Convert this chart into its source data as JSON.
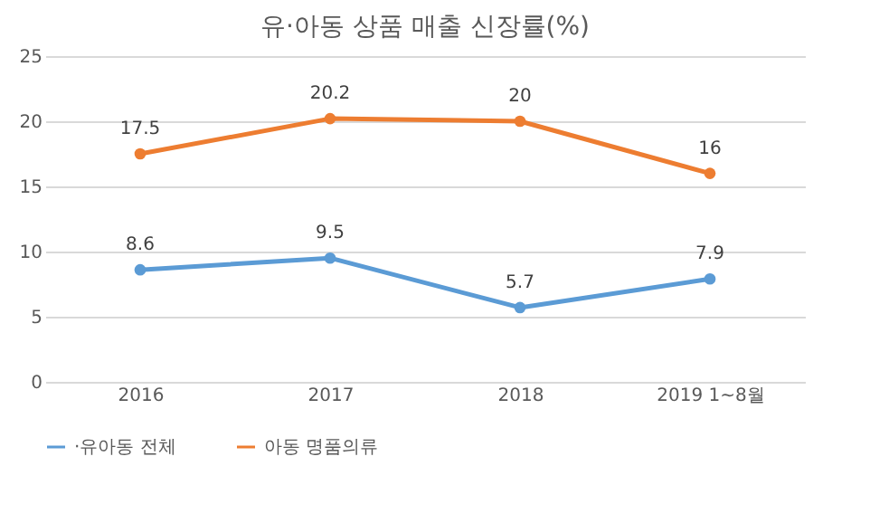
{
  "chart_data": {
    "type": "line",
    "title": "유·아동 상품 매출 신장률(%)",
    "categories": [
      "2016",
      "2017",
      "2018",
      "2019 1~8월"
    ],
    "series": [
      {
        "name": "·유아동 전체",
        "color": "#5b9bd5",
        "values": [
          8.6,
          9.5,
          5.7,
          7.9
        ]
      },
      {
        "name": "아동 명품의류",
        "color": "#ed7d31",
        "values": [
          17.5,
          20.2,
          20,
          16
        ]
      }
    ],
    "ylim": [
      0,
      25
    ],
    "yticks": [
      0,
      5,
      10,
      15,
      20,
      25
    ],
    "grid": "y",
    "legend": "bottom",
    "marker": "circle",
    "line_style": "solid",
    "data_labels": true
  }
}
